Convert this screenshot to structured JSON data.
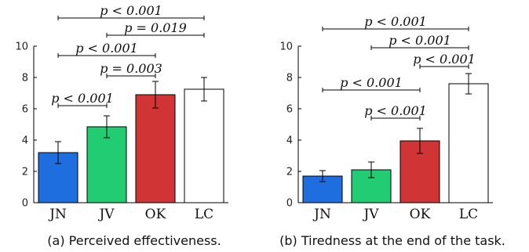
{
  "chart_data": [
    {
      "type": "bar",
      "caption": "(a) Perceived effectiveness.",
      "categories": [
        "JN",
        "JV",
        "OK",
        "LC"
      ],
      "values": [
        3.2,
        4.85,
        6.9,
        7.25
      ],
      "errors": [
        0.7,
        0.7,
        0.85,
        0.75
      ],
      "colors": [
        "#1f6ee0",
        "#21cc72",
        "#d03434",
        "#ffffff"
      ],
      "ylim": [
        0,
        10
      ],
      "yticks": [
        0,
        2,
        4,
        6,
        8,
        10
      ],
      "comparisons": [
        {
          "from": 0,
          "to": 3,
          "label": "p < 0.001",
          "y": 11.8
        },
        {
          "from": 1,
          "to": 3,
          "label": "p = 0.019",
          "y": 10.7
        },
        {
          "from": 0,
          "to": 2,
          "label": "p < 0.001",
          "y": 9.4
        },
        {
          "from": 1,
          "to": 2,
          "label": "p = 0.003",
          "y": 8.1
        },
        {
          "from": 0,
          "to": 1,
          "label": "p < 0.001",
          "y": 6.2
        }
      ]
    },
    {
      "type": "bar",
      "caption": "(b) Tiredness at the end of the task.",
      "categories": [
        "JN",
        "JV",
        "OK",
        "LC"
      ],
      "values": [
        1.7,
        2.1,
        3.95,
        7.6
      ],
      "errors": [
        0.35,
        0.5,
        0.8,
        0.65
      ],
      "colors": [
        "#1f6ee0",
        "#21cc72",
        "#d03434",
        "#ffffff"
      ],
      "ylim": [
        0,
        10
      ],
      "yticks": [
        0,
        2,
        4,
        6,
        8,
        10
      ],
      "comparisons": [
        {
          "from": 0,
          "to": 3,
          "label": "p < 0.001",
          "y": 11.1
        },
        {
          "from": 1,
          "to": 3,
          "label": "p < 0.001",
          "y": 9.9
        },
        {
          "from": 2,
          "to": 3,
          "label": "p < 0.001",
          "y": 8.7
        },
        {
          "from": 0,
          "to": 2,
          "label": "p < 0.001",
          "y": 7.2
        },
        {
          "from": 1,
          "to": 2,
          "label": "p < 0.001",
          "y": 5.4
        }
      ]
    }
  ]
}
